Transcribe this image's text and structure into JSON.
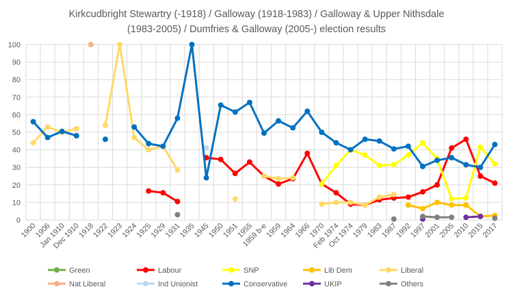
{
  "chart_data": {
    "type": "line",
    "title_lines": [
      "Kirkcudbright Stewartry (-1918) / Galloway (1918-1983) / Galloway & Upper Nithsdale",
      "(1983-2005) / Dumfries & Galloway (2005-) election results"
    ],
    "xlabel": "",
    "ylabel": "",
    "ylim": [
      0,
      100
    ],
    "yticks": [
      0,
      10,
      20,
      30,
      40,
      50,
      60,
      70,
      80,
      90,
      100
    ],
    "grid": true,
    "legend_position": "bottom",
    "categories": [
      "1900",
      "1906",
      "Jan 1910",
      "Dec 1910",
      "1918",
      "1922",
      "1923",
      "1924",
      "1925",
      "1929",
      "1931",
      "1935",
      "1945",
      "1950",
      "1951",
      "1955",
      "1959 b-e",
      "1959",
      "1964",
      "1966",
      "1970",
      "Feb 1974",
      "Oct 1974",
      "1979",
      "1983",
      "1987",
      "1992",
      "1997",
      "2001",
      "2005",
      "2010",
      "2015",
      "2017"
    ],
    "series": [
      {
        "name": "Green",
        "color": "#70ad47",
        "values": [
          null,
          null,
          null,
          null,
          null,
          null,
          null,
          null,
          null,
          null,
          null,
          null,
          null,
          null,
          null,
          null,
          null,
          null,
          null,
          null,
          null,
          null,
          null,
          null,
          null,
          null,
          null,
          null,
          null,
          null,
          null,
          null,
          null
        ]
      },
      {
        "name": "Labour",
        "color": "#ff0000",
        "values": [
          null,
          null,
          null,
          null,
          null,
          null,
          null,
          null,
          16.5,
          15.5,
          10.5,
          null,
          35.5,
          34.5,
          26.5,
          33,
          25,
          20.5,
          23.5,
          38,
          20.5,
          15.5,
          9,
          8.5,
          11.5,
          12.5,
          13,
          16,
          20,
          41,
          46,
          25,
          21
        ]
      },
      {
        "name": "SNP",
        "color": "#ffff00",
        "values": [
          null,
          null,
          null,
          null,
          null,
          null,
          null,
          null,
          null,
          null,
          null,
          null,
          null,
          null,
          null,
          null,
          null,
          null,
          null,
          null,
          20.5,
          31,
          40,
          37,
          31,
          31.5,
          37,
          44,
          35,
          12,
          12.5,
          41.5,
          32
        ]
      },
      {
        "name": "Lib Dem",
        "color": "#ffc000",
        "values": [
          null,
          null,
          null,
          null,
          null,
          null,
          null,
          null,
          null,
          null,
          null,
          null,
          null,
          null,
          null,
          null,
          null,
          null,
          null,
          null,
          null,
          null,
          null,
          null,
          null,
          null,
          8.5,
          6.5,
          10,
          8.5,
          8.5,
          2,
          2.5
        ]
      },
      {
        "name": "Liberal",
        "color": "#ffd966",
        "values": [
          44,
          53,
          50,
          52,
          null,
          54,
          100,
          47,
          40,
          42,
          28.5,
          null,
          null,
          null,
          12,
          null,
          25,
          23.5,
          24,
          null,
          9,
          10,
          10,
          8.5,
          13,
          14.5,
          null,
          null,
          null,
          null,
          null,
          null,
          null
        ]
      },
      {
        "name": "Nat Liberal",
        "color": "#f4b183",
        "values": [
          null,
          null,
          null,
          null,
          100,
          null,
          null,
          null,
          null,
          null,
          null,
          null,
          null,
          null,
          null,
          null,
          null,
          null,
          null,
          null,
          null,
          null,
          null,
          null,
          null,
          null,
          null,
          null,
          null,
          null,
          null,
          null,
          null
        ]
      },
      {
        "name": "Ind Unionist",
        "color": "#bdd7ee",
        "values": [
          null,
          null,
          null,
          null,
          null,
          null,
          null,
          null,
          null,
          null,
          null,
          null,
          41,
          null,
          null,
          null,
          null,
          null,
          null,
          null,
          null,
          null,
          null,
          null,
          null,
          null,
          null,
          null,
          null,
          null,
          null,
          null,
          null
        ]
      },
      {
        "name": "Conservative",
        "color": "#0070c0",
        "values": [
          56,
          47,
          50.5,
          48,
          null,
          46,
          null,
          53,
          43.5,
          42,
          58,
          100,
          24,
          65.5,
          61.5,
          67,
          49.5,
          56.5,
          52.5,
          62,
          50,
          44,
          40,
          46,
          45,
          40.5,
          42,
          30.5,
          34,
          35.5,
          31.5,
          30,
          43
        ]
      },
      {
        "name": "UKIP",
        "color": "#7030a0",
        "values": [
          null,
          null,
          null,
          null,
          null,
          null,
          null,
          null,
          null,
          null,
          null,
          null,
          null,
          null,
          null,
          null,
          null,
          null,
          null,
          null,
          null,
          null,
          null,
          null,
          null,
          null,
          null,
          0.5,
          null,
          null,
          1.5,
          2,
          null
        ]
      },
      {
        "name": "Others",
        "color": "#808080",
        "values": [
          null,
          null,
          null,
          null,
          null,
          null,
          null,
          null,
          null,
          null,
          3,
          null,
          null,
          null,
          null,
          null,
          null,
          null,
          null,
          null,
          null,
          null,
          null,
          null,
          null,
          0.5,
          null,
          2,
          1.5,
          1.5,
          null,
          null,
          1
        ]
      }
    ]
  }
}
